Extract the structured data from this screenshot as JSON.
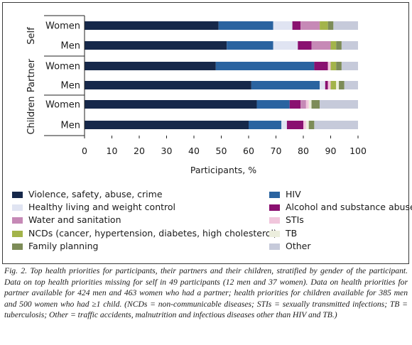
{
  "chart_data": {
    "type": "bar",
    "orientation": "horizontal",
    "stacked": true,
    "xlabel": "Participants, %",
    "xlim": [
      0,
      100
    ],
    "xticks": [
      0,
      10,
      20,
      30,
      40,
      50,
      60,
      70,
      80,
      90,
      100
    ],
    "groups": [
      {
        "label": "Self",
        "bars": [
          "Women",
          "Men"
        ]
      },
      {
        "label": "Partner",
        "bars": [
          "Women",
          "Men"
        ]
      },
      {
        "label": "Children",
        "bars": [
          "Women",
          "Men"
        ]
      }
    ],
    "categories": [
      "Self / Women",
      "Self / Men",
      "Partner / Women",
      "Partner / Men",
      "Children / Women",
      "Children / Men"
    ],
    "series": [
      {
        "name": "Violence, safety, abuse, crime",
        "color": "#16284a",
        "values": [
          49,
          52,
          48,
          61,
          63,
          60
        ]
      },
      {
        "name": "HIV",
        "color": "#2a63a0",
        "values": [
          20,
          17,
          36,
          25,
          12,
          12
        ]
      },
      {
        "name": "Healthy living and weight control",
        "color": "#e0e4f2",
        "values": [
          7,
          9,
          0,
          2,
          0,
          2
        ]
      },
      {
        "name": "Alcohol and substance abuse",
        "color": "#8a1070",
        "values": [
          3,
          5,
          5,
          1,
          4,
          6
        ]
      },
      {
        "name": "Water and sanitation",
        "color": "#c689b6",
        "values": [
          7,
          7,
          0,
          0,
          2,
          0
        ]
      },
      {
        "name": "STIs",
        "color": "#f1c6dc",
        "values": [
          0,
          0,
          1,
          1,
          1,
          1
        ]
      },
      {
        "name": "NCDs (cancer, hypertension, diabetes, high cholesterol)",
        "color": "#a3b44a",
        "values": [
          3,
          2,
          2,
          2,
          0,
          0
        ]
      },
      {
        "name": "TB",
        "color": "#eceedd",
        "values": [
          0,
          0,
          0,
          1,
          1,
          1
        ]
      },
      {
        "name": "Family planning",
        "color": "#7d8c58",
        "values": [
          2,
          2,
          2,
          2,
          3,
          2
        ]
      },
      {
        "name": "Other",
        "color": "#c6cada",
        "values": [
          9,
          6,
          6,
          5,
          14,
          16
        ]
      }
    ],
    "legend": {
      "placement": "bottom, two columns",
      "left": [
        "Violence, safety, abuse, crime",
        "Healthy living and weight control",
        "Water and sanitation",
        "NCDs (cancer, hypertension, diabetes, high cholesterol)",
        "Family planning"
      ],
      "right": [
        "HIV",
        "Alcohol and substance abuse",
        "STIs",
        "TB",
        "Other"
      ]
    },
    "grid": false
  },
  "caption": "Fig. 2. Top health priorities for participants, their partners and their children, stratified by gender of the participant. Data on top health priorities missing for self in 49 participants (12 men and 37 women). Data on health priorities for partner available for 424 men and 463 women who had a partner; health priorities for children available for 385 men and 500 women who had ≥1 child. (NCDs = non-communicable diseases; STIs = sexually transmitted infections; TB = tuberculosis; Other = traffic accidents, malnutrition and infectious diseases other than HIV and TB.)"
}
